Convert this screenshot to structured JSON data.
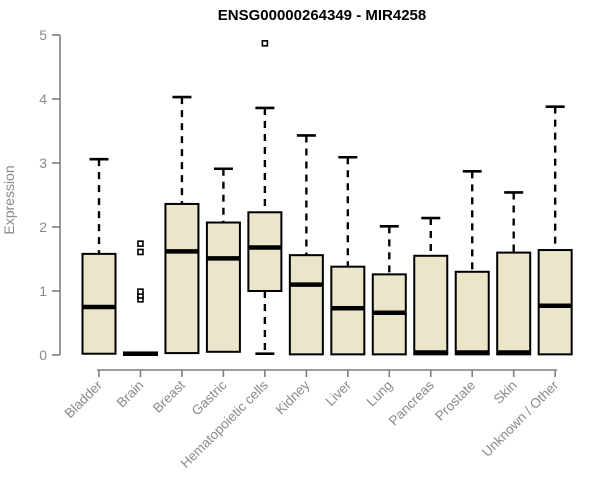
{
  "chart_data": {
    "type": "boxplot",
    "title": "ENSG00000264349 - MIR4258",
    "ylabel": "Expression",
    "xlabel": "",
    "ylim": [
      0,
      5
    ],
    "yticks": [
      0,
      1,
      2,
      3,
      4,
      5
    ],
    "grid": false,
    "legend": "none",
    "categories": [
      "Bladder",
      "Brain",
      "Breast",
      "Gastric",
      "Hematopoietic cells",
      "Kidney",
      "Liver",
      "Lung",
      "Pancreas",
      "Prostate",
      "Skin",
      "Unknown / Other"
    ],
    "series": [
      {
        "name": "Bladder",
        "low": 0.02,
        "q1": 0.02,
        "median": 0.75,
        "q3": 1.58,
        "high": 3.06,
        "outliers": []
      },
      {
        "name": "Brain",
        "low": 0.0,
        "q1": 0.0,
        "median": 0.02,
        "q3": 0.04,
        "high": 0.04,
        "outliers": [
          0.87,
          0.93,
          0.99,
          1.61,
          1.74
        ]
      },
      {
        "name": "Breast",
        "low": 0.03,
        "q1": 0.03,
        "median": 1.62,
        "q3": 2.36,
        "high": 4.03,
        "outliers": []
      },
      {
        "name": "Gastric",
        "low": 0.05,
        "q1": 0.05,
        "median": 1.51,
        "q3": 2.07,
        "high": 2.91,
        "outliers": []
      },
      {
        "name": "Hematopoietic cells",
        "low": 0.02,
        "q1": 1.0,
        "median": 1.68,
        "q3": 2.23,
        "high": 3.86,
        "outliers": [
          4.87
        ]
      },
      {
        "name": "Kidney",
        "low": 0.01,
        "q1": 0.01,
        "median": 1.1,
        "q3": 1.56,
        "high": 3.43,
        "outliers": []
      },
      {
        "name": "Liver",
        "low": 0.01,
        "q1": 0.01,
        "median": 0.73,
        "q3": 1.38,
        "high": 3.09,
        "outliers": []
      },
      {
        "name": "Lung",
        "low": 0.01,
        "q1": 0.01,
        "median": 0.66,
        "q3": 1.26,
        "high": 2.01,
        "outliers": []
      },
      {
        "name": "Pancreas",
        "low": 0.01,
        "q1": 0.01,
        "median": 0.04,
        "q3": 1.55,
        "high": 2.14,
        "outliers": []
      },
      {
        "name": "Prostate",
        "low": 0.01,
        "q1": 0.01,
        "median": 0.04,
        "q3": 1.3,
        "high": 2.87,
        "outliers": []
      },
      {
        "name": "Skin",
        "low": 0.01,
        "q1": 0.01,
        "median": 0.04,
        "q3": 1.6,
        "high": 2.54,
        "outliers": []
      },
      {
        "name": "Unknown / Other",
        "low": 0.01,
        "q1": 0.01,
        "median": 0.77,
        "q3": 1.64,
        "high": 3.88,
        "outliers": []
      }
    ],
    "colors": {
      "box_fill": "#EBE5C9",
      "box_stroke": "#000000",
      "median": "#000000",
      "whisker": "#000000",
      "outlier_stroke": "#000000",
      "outlier_fill": "#ffffff",
      "axis": "#7f7f7f",
      "tick_text": "#8a8a8a",
      "title_text": "#000000",
      "background": "#ffffff"
    }
  }
}
